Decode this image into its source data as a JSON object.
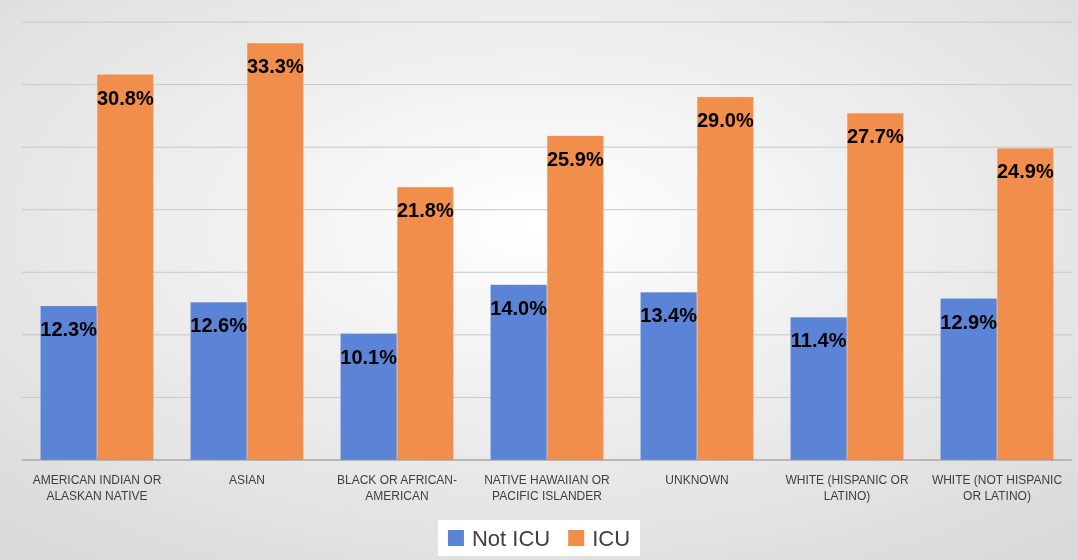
{
  "chart_data": {
    "type": "bar",
    "categories": [
      "AMERICAN INDIAN OR ALASKAN NATIVE",
      "ASIAN",
      "BLACK OR AFRICAN-AMERICAN",
      "NATIVE HAWAIIAN OR PACIFIC ISLANDER",
      "UNKNOWN",
      "WHITE (HISPANIC OR LATINO)",
      "WHITE (NOT HISPANIC OR LATINO)"
    ],
    "series": [
      {
        "name": "Not ICU",
        "color": "#5b84d6",
        "values": [
          12.3,
          12.6,
          10.1,
          14.0,
          13.4,
          11.4,
          12.9
        ],
        "value_labels": [
          "12.3%",
          "12.6%",
          "10.1%",
          "14.0%",
          "13.4%",
          "11.4%",
          "12.9%"
        ]
      },
      {
        "name": "ICU",
        "color": "#f28e4c",
        "values": [
          30.8,
          33.3,
          21.8,
          25.9,
          29.0,
          27.7,
          24.9
        ],
        "value_labels": [
          "30.8%",
          "33.3%",
          "21.8%",
          "25.9%",
          "29.0%",
          "27.7%",
          "24.9%"
        ]
      }
    ],
    "ylim": [
      0,
      35
    ],
    "yticks": [
      {
        "value": 0,
        "label": null
      },
      {
        "value": 5,
        "label": null
      },
      {
        "value": 10,
        "label": null
      },
      {
        "value": 15,
        "label": null
      },
      {
        "value": 20,
        "label": null
      },
      {
        "value": 25,
        "label": null
      },
      {
        "value": 30,
        "label": null
      },
      {
        "value": 35,
        "label": null
      }
    ],
    "tick_labels": "x",
    "grid": "y",
    "legend": "bottom"
  }
}
